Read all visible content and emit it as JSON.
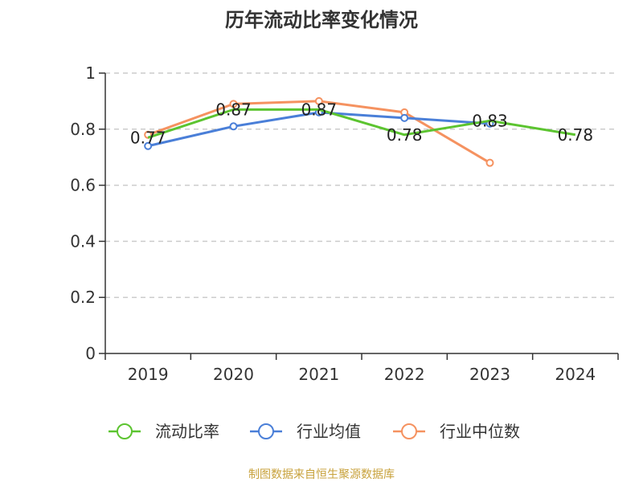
{
  "chart_data": {
    "type": "line",
    "title": "历年流动比率变化情况",
    "xlabel": "",
    "ylabel": "",
    "categories": [
      "2019",
      "2020",
      "2021",
      "2022",
      "2023",
      "2024"
    ],
    "ylim": [
      0,
      1
    ],
    "yticks": [
      0,
      0.2,
      0.4,
      0.6,
      0.8,
      1
    ],
    "ytick_labels": [
      "0",
      "0.2",
      "0.4",
      "0.6",
      "0.8",
      "1"
    ],
    "grid": "horizontal dashed",
    "legend_position": "bottom",
    "series": [
      {
        "name": "流动比率",
        "color": "#5cc430",
        "values": [
          0.77,
          0.87,
          0.87,
          0.78,
          0.83,
          0.78
        ],
        "labels": [
          "0.77",
          "0.87",
          "0.87",
          "0.78",
          "0.83",
          "0.78"
        ],
        "markers": false
      },
      {
        "name": "行业均值",
        "color": "#4a7fd8",
        "values": [
          0.74,
          0.81,
          0.86,
          0.84,
          0.82,
          null
        ],
        "markers": true
      },
      {
        "name": "行业中位数",
        "color": "#f59260",
        "values": [
          0.78,
          0.89,
          0.9,
          0.86,
          0.68,
          null
        ],
        "markers": true
      }
    ]
  },
  "source_text": "制图数据来自恒生聚源数据库",
  "source_color": "#c8a23c",
  "axis_color": "#333333",
  "grid_color": "#cccccc"
}
